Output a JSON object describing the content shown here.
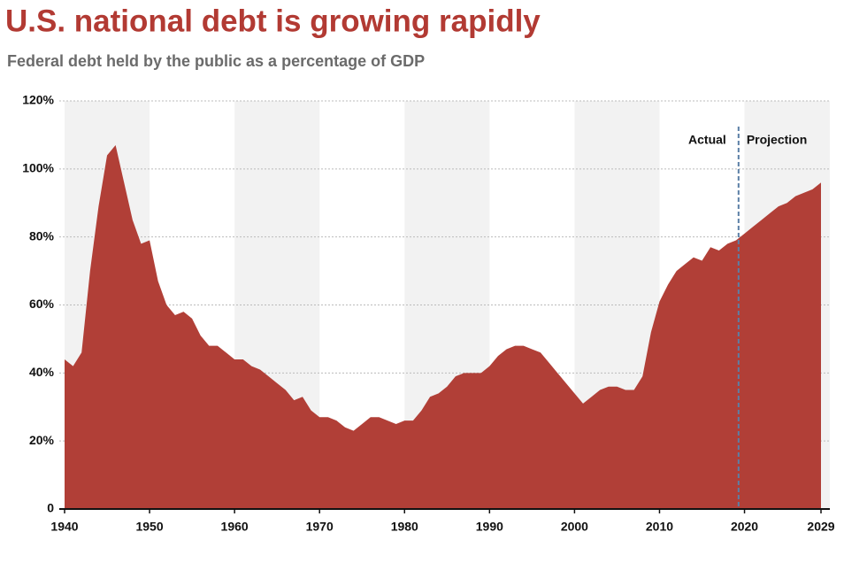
{
  "chart_data": {
    "type": "area",
    "title": "U.S. national debt is growing rapidly",
    "subtitle": "Federal debt held by the public as a percentage of GDP",
    "x": [
      1940,
      1941,
      1942,
      1943,
      1944,
      1945,
      1946,
      1947,
      1948,
      1949,
      1950,
      1951,
      1952,
      1953,
      1954,
      1955,
      1956,
      1957,
      1958,
      1959,
      1960,
      1961,
      1962,
      1963,
      1964,
      1965,
      1966,
      1967,
      1968,
      1969,
      1970,
      1971,
      1972,
      1973,
      1974,
      1975,
      1976,
      1977,
      1978,
      1979,
      1980,
      1981,
      1982,
      1983,
      1984,
      1985,
      1986,
      1987,
      1988,
      1989,
      1990,
      1991,
      1992,
      1993,
      1994,
      1995,
      1996,
      1997,
      1998,
      1999,
      2000,
      2001,
      2002,
      2003,
      2004,
      2005,
      2006,
      2007,
      2008,
      2009,
      2010,
      2011,
      2012,
      2013,
      2014,
      2015,
      2016,
      2017,
      2018,
      2019,
      2020,
      2021,
      2022,
      2023,
      2024,
      2025,
      2026,
      2027,
      2028,
      2029
    ],
    "values": [
      44,
      42,
      46,
      70,
      89,
      104,
      107,
      96,
      85,
      78,
      79,
      67,
      60,
      57,
      58,
      56,
      51,
      48,
      48,
      46,
      44,
      44,
      42,
      41,
      39,
      37,
      35,
      32,
      33,
      29,
      27,
      27,
      26,
      24,
      23,
      25,
      27,
      27,
      26,
      25,
      26,
      26,
      29,
      33,
      34,
      36,
      39,
      40,
      40,
      40,
      42,
      45,
      47,
      48,
      48,
      47,
      46,
      43,
      40,
      37,
      34,
      31,
      33,
      35,
      36,
      36,
      35,
      35,
      39,
      52,
      61,
      66,
      70,
      72,
      74,
      73,
      77,
      76,
      78,
      79,
      81,
      83,
      85,
      87,
      89,
      90,
      92,
      93,
      94,
      96
    ],
    "color": "#b13f37",
    "xlim": [
      1940,
      2029
    ],
    "xticks": [
      1940,
      1950,
      1960,
      1970,
      1980,
      1990,
      2000,
      2010,
      2020,
      2029
    ],
    "ylim": [
      0,
      120
    ],
    "yticks": [
      0,
      {
        "value": 20,
        "label": "20%"
      },
      {
        "value": 40,
        "label": "40%"
      },
      {
        "value": 60,
        "label": "60%"
      },
      {
        "value": 80,
        "label": "80%"
      },
      {
        "value": 100,
        "label": "100%"
      },
      {
        "value": 120,
        "label": "120%"
      }
    ],
    "grid": true,
    "divider_x": 2019.3,
    "annotations": [
      "Actual",
      "Projection"
    ]
  }
}
